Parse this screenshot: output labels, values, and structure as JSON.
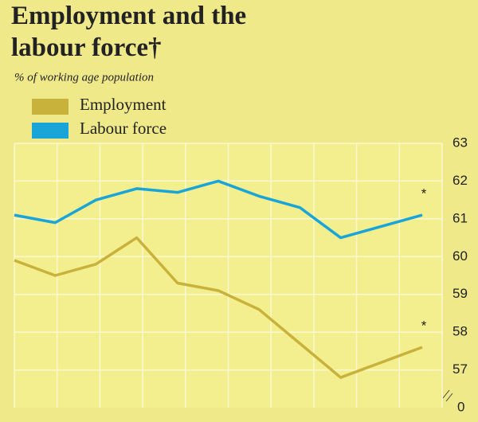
{
  "chart_data": {
    "type": "line",
    "title": "Employment and the labour force†",
    "subtitle": "% of working age population",
    "categories": [
      null,
      null,
      null,
      null,
      null,
      null,
      null,
      null,
      null,
      null,
      null
    ],
    "series": [
      {
        "name": "Employment",
        "color": "#c9b23c",
        "values": [
          59.9,
          59.5,
          59.8,
          60.5,
          59.3,
          59.1,
          58.6,
          57.7,
          56.8,
          57.2,
          57.6
        ]
      },
      {
        "name": "Labour force",
        "color": "#1aa5d8",
        "values": [
          61.1,
          60.9,
          61.5,
          61.8,
          61.7,
          62.0,
          61.6,
          61.3,
          60.5,
          60.8,
          61.1
        ]
      }
    ],
    "ylim": [
      56,
      63
    ],
    "yticks": [
      57,
      58,
      59,
      60,
      61,
      62,
      63
    ],
    "axis_break_label": 0,
    "annotations": [
      "*",
      "*"
    ],
    "grid": true,
    "legend": "top-left"
  }
}
